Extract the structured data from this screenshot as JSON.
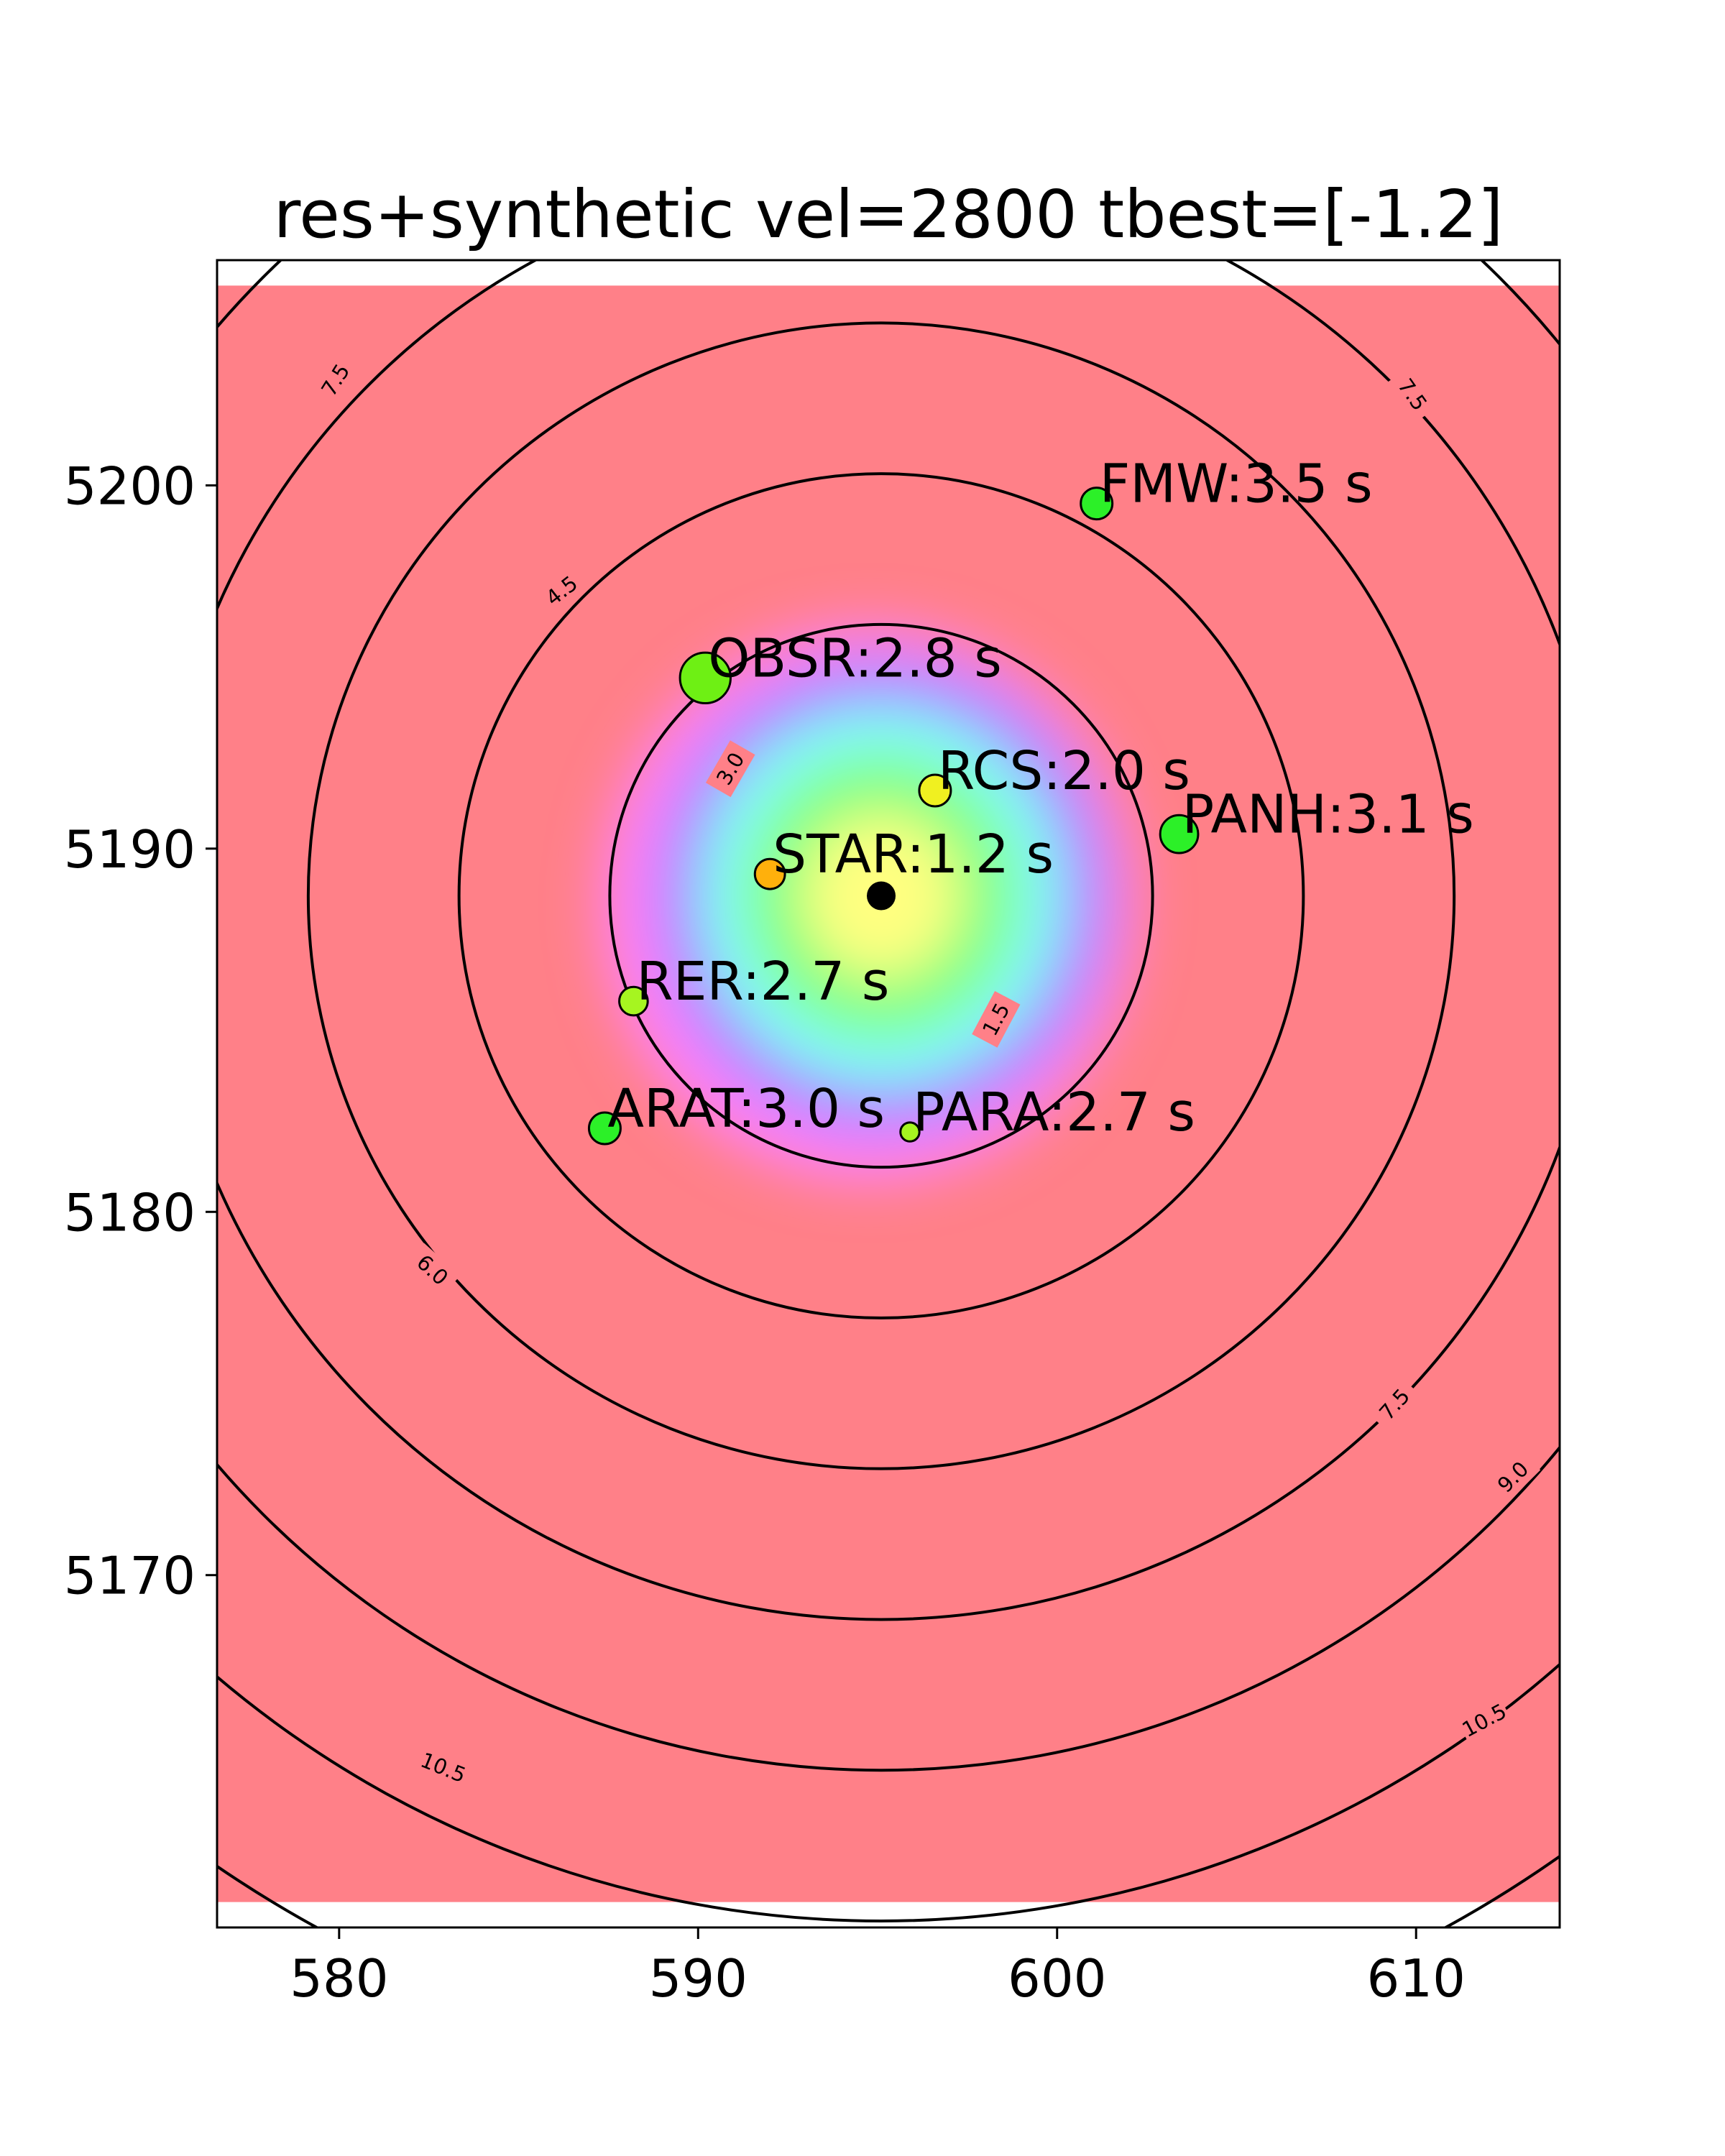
{
  "chart_data": {
    "type": "contour",
    "title": "res+synthetic vel=2800 tbest=[-1.2]",
    "xlabel": "",
    "ylabel": "",
    "xlim": [
      576.6,
      614.0
    ],
    "ylim": [
      5160.3,
      5206.2
    ],
    "data_extent": {
      "x": [
        576.6,
        614.0
      ],
      "y": [
        5161.0,
        5205.5
      ]
    },
    "x_ticks": [
      580,
      590,
      600,
      610
    ],
    "y_ticks": [
      5170,
      5180,
      5190,
      5200
    ],
    "grid": false,
    "legend": "none",
    "source": {
      "x": 595.1,
      "y": 5188.7
    },
    "velocity": 2800,
    "t_best": -1.2,
    "contour_levels": [
      1.5,
      3.0,
      4.5,
      6.0,
      7.5,
      9.0,
      10.5
    ],
    "contour_labels": [
      {
        "text": "1.5",
        "x": 598.3,
        "y": 5185.3,
        "angle": -62
      },
      {
        "text": "3.0",
        "x": 590.9,
        "y": 5192.2,
        "angle": -60
      },
      {
        "text": "4.5",
        "x": 586.2,
        "y": 5197.1,
        "angle": -38
      },
      {
        "text": "6.0",
        "x": 582.6,
        "y": 5178.4,
        "angle": 42
      },
      {
        "text": "7.5",
        "x": 579.9,
        "y": 5202.9,
        "angle": -58
      },
      {
        "text": "7.5",
        "x": 609.9,
        "y": 5202.5,
        "angle": 55
      },
      {
        "text": "7.5",
        "x": 609.4,
        "y": 5174.7,
        "angle": -48
      },
      {
        "text": "9.0",
        "x": 612.7,
        "y": 5172.7,
        "angle": -45
      },
      {
        "text": "10.5",
        "x": 582.9,
        "y": 5164.7,
        "angle": 22
      },
      {
        "text": "10.5",
        "x": 611.9,
        "y": 5166.0,
        "angle": -28
      }
    ],
    "stations": [
      {
        "name": "FMW",
        "x": 601.1,
        "y": 5199.5,
        "time": 3.5,
        "label": "FMW:3.5 s",
        "size": 1.0
      },
      {
        "name": "OBSR",
        "x": 590.2,
        "y": 5194.7,
        "time": 2.8,
        "label": "OBSR:2.8 s",
        "size": 1.6
      },
      {
        "name": "RCS",
        "x": 596.6,
        "y": 5191.6,
        "time": 2.0,
        "label": "RCS:2.0 s",
        "size": 1.0
      },
      {
        "name": "PANH",
        "x": 603.4,
        "y": 5190.4,
        "time": 3.1,
        "label": "PANH:3.1 s",
        "size": 1.2
      },
      {
        "name": "STAR",
        "x": 592.0,
        "y": 5189.3,
        "time": 1.2,
        "label": "STAR:1.2 s",
        "size": 0.95
      },
      {
        "name": "RER",
        "x": 588.2,
        "y": 5185.8,
        "time": 2.7,
        "label": "RER:2.7 s",
        "size": 0.9
      },
      {
        "name": "ARAT",
        "x": 587.4,
        "y": 5182.3,
        "time": 3.0,
        "label": "ARAT:3.0 s",
        "size": 1.0
      },
      {
        "name": "PARA",
        "x": 595.9,
        "y": 5182.2,
        "time": 2.7,
        "label": "PARA:2.7 s",
        "size": 0.6
      }
    ],
    "colors": {
      "background_field": "#ff8088",
      "field_colormap": [
        "#ff80ff",
        "#a080ff",
        "#80ffff",
        "#80ff80",
        "#ffff80"
      ],
      "contour_line": "#000000",
      "source_marker": "#000000",
      "station_outline": "#000000"
    }
  }
}
